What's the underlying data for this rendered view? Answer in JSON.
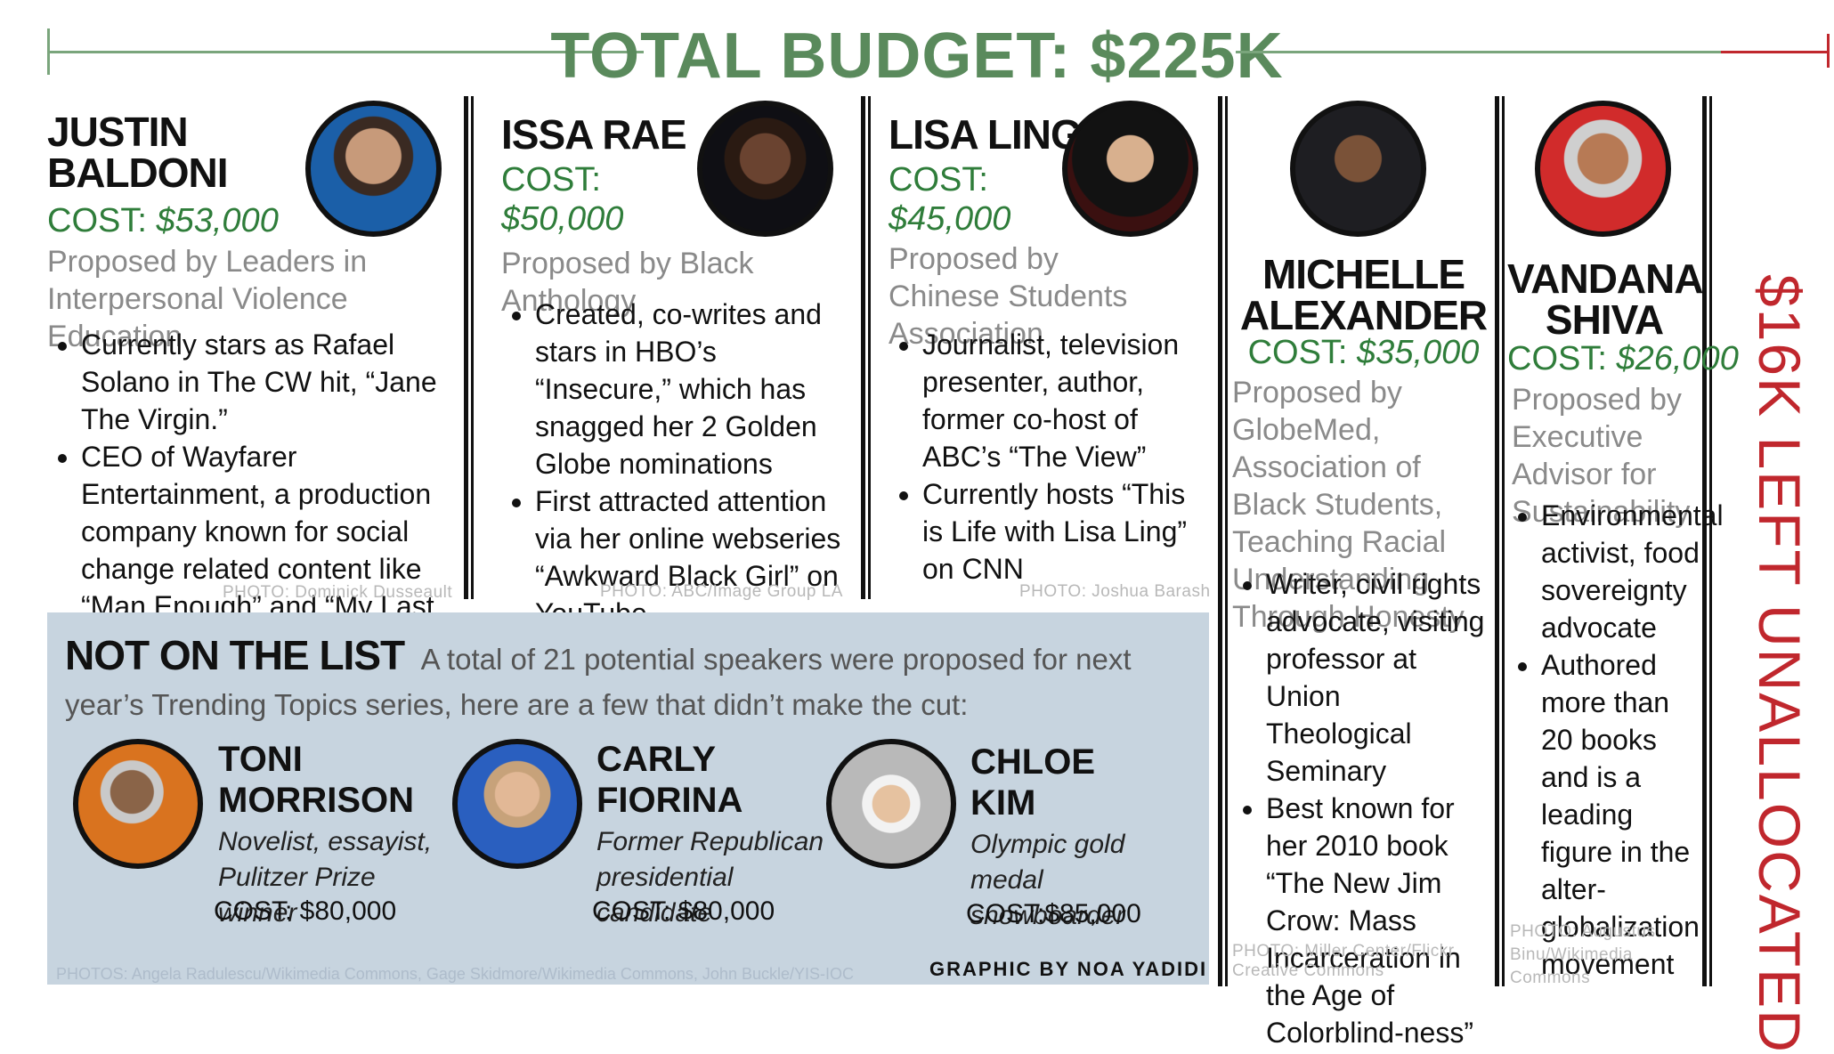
{
  "header": {
    "title": "TOTAL BUDGET: $225K"
  },
  "speakers": [
    {
      "name_line1": "JUSTIN",
      "name_line2": "BALDONI",
      "cost_label": "COST: ",
      "cost_value": "$53,000",
      "proposed_line1": "Proposed by Leaders in",
      "proposed_line2": "Interpersonal Violence Education",
      "bullets": [
        "Currently stars as Rafael Solano in The CW hit, “Jane The Virgin.”",
        "CEO of Wayfarer Entertainment, a production company known for social change related content like “Man Enough” and “My Last Days”"
      ],
      "photo_credit": "PHOTO: Dominick Dusseault"
    },
    {
      "name": "ISSA RAE",
      "cost_label": "COST:",
      "cost_value": "$50,000",
      "proposed": "Proposed by Black Anthology",
      "bullets": [
        "Created, co-writes and stars in HBO’s “Insecure,” which has snagged her 2 Golden Globe nominations",
        "First attracted attention via her online webseries “Awkward Black Girl” on YouTube"
      ],
      "photo_credit": "PHOTO: ABC/Image Group LA"
    },
    {
      "name": "LISA LING",
      "cost_label": "COST:",
      "cost_value": "$45,000",
      "proposed_line1": "Proposed by",
      "proposed_line2": "Chinese Students Association",
      "bullets": [
        "Journalist, television presenter, author, former co-host of ABC’s “The View”",
        "Currently hosts “This is Life with Lisa Ling” on CNN"
      ],
      "photo_credit": "PHOTO: Joshua Barash"
    },
    {
      "name_line1": "MICHELLE",
      "name_line2": "ALEXANDER",
      "cost_label": "COST: ",
      "cost_value": "$35,000",
      "proposed": "Proposed by GlobeMed, Association of Black Students, Teaching Racial Understanding Through Honesty",
      "bullets": [
        "Writer, civil rights advocate, visiting professor at Union Theological Seminary",
        "Best known for her 2010 book “The New Jim Crow: Mass Incarceration in the Age of Colorblind-ness”"
      ],
      "photo_credit_line1": "PHOTO: Miller Center/Flickr",
      "photo_credit_line2": "Creative Commons"
    },
    {
      "name_line1": "VANDANA",
      "name_line2": "SHIVA",
      "cost_label": "COST: ",
      "cost_value": "$26,000",
      "proposed": "Proposed by Executive Advisor for Sustainability",
      "bullets": [
        "Environmental activist, food sovereignty advocate",
        "Authored more than 20 books and is a leading figure in the alter-globalization movement"
      ],
      "photo_credit": "PHOTO: Augustus Binu/Wikimedia Commons"
    }
  ],
  "unallocated": "$16K LEFT UNALLOCATED",
  "not_on_list": {
    "title": "NOT ON THE LIST",
    "intro": "A total of 21 potential speakers were proposed for next year’s Trending Topics series, here are a few that didn’t make the cut:",
    "people": [
      {
        "name_line1": "TONI",
        "name_line2": "MORRISON",
        "desc_line1": "Novelist, essayist,",
        "desc_line2": "Pulitzer Prize winner",
        "cost": "COST: $80,000"
      },
      {
        "name_line1": "CARLY",
        "name_line2": "FIORINA",
        "desc_line1": "Former Republican",
        "desc_line2": "presidential candidate",
        "cost": "COST: $80,000"
      },
      {
        "name_line1": "CHLOE",
        "name_line2": "KIM",
        "desc_line1": "Olympic gold",
        "desc_line2": "medal snowboarder",
        "cost": "COST:$85,000"
      }
    ],
    "photo_credits": "PHOTOS: Angela Radulescu/Wikimedia Commons, Gage Skidmore/Wikimedia Commons, John Buckle/YIS-IOC",
    "graphic_credit": "GRAPHIC BY NOA YADIDI"
  },
  "colors": {
    "accent_green": "#2f7d3a",
    "title_green": "#5a8a5c",
    "red": "#c0272d",
    "panel": "#c7d4df"
  }
}
